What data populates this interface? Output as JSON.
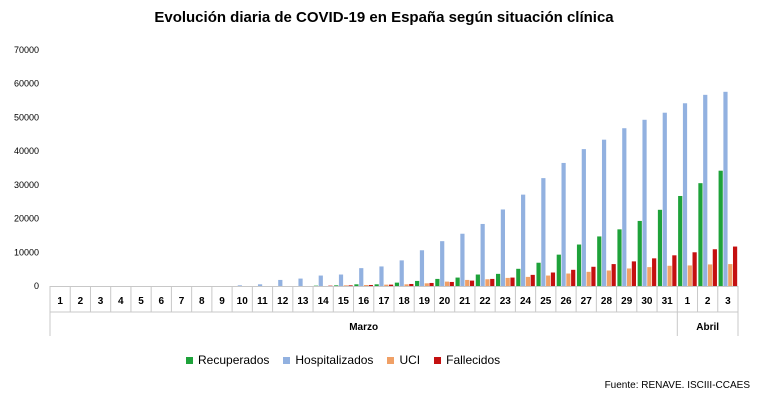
{
  "chart_data": {
    "type": "bar",
    "title": "Evolución diaria de COVID-19 en España según situación clínica",
    "source": "Fuente: RENAVE. ISCIII-CCAES",
    "categories": [
      "1",
      "2",
      "3",
      "4",
      "5",
      "6",
      "7",
      "8",
      "9",
      "10",
      "11",
      "12",
      "13",
      "14",
      "15",
      "16",
      "17",
      "18",
      "19",
      "20",
      "21",
      "22",
      "23",
      "24",
      "25",
      "26",
      "27",
      "28",
      "29",
      "30",
      "31",
      "1",
      "2",
      "3"
    ],
    "month_groups": [
      {
        "label": "Marzo",
        "count": 31
      },
      {
        "label": "Abril",
        "count": 3
      }
    ],
    "ylim": [
      0,
      70000
    ],
    "yticks": [
      0,
      10000,
      20000,
      30000,
      40000,
      50000,
      60000,
      70000
    ],
    "legend_position": "bottom",
    "grid": false,
    "series": [
      {
        "name": "Recuperados",
        "color": "#1ea23a",
        "values": [
          0,
          0,
          0,
          0,
          0,
          0,
          0,
          0,
          0,
          0,
          0,
          0,
          0,
          100,
          200,
          500,
          500,
          1000,
          1500,
          2100,
          2500,
          3400,
          3600,
          5100,
          6900,
          9300,
          12300,
          14700,
          16800,
          19300,
          22600,
          26700,
          30500,
          34200
        ]
      },
      {
        "name": "Hospitalizados",
        "color": "#92b1e0",
        "values": [
          0,
          0,
          0,
          0,
          0,
          0,
          0,
          0,
          0,
          200,
          500,
          1800,
          2200,
          3100,
          3400,
          5300,
          5800,
          7600,
          10600,
          13300,
          15500,
          18400,
          22700,
          27100,
          32000,
          36500,
          40600,
          43400,
          46800,
          49300,
          51400,
          54200,
          56700,
          57600
        ]
      },
      {
        "name": "UCI",
        "color": "#f0a066",
        "values": [
          0,
          0,
          0,
          0,
          0,
          0,
          0,
          0,
          0,
          0,
          0,
          0,
          0,
          0,
          200,
          300,
          400,
          500,
          800,
          1300,
          1800,
          2000,
          2400,
          2700,
          3100,
          3700,
          4200,
          4600,
          5200,
          5600,
          6000,
          6100,
          6400,
          6500
        ]
      },
      {
        "name": "Fallecidos",
        "color": "#c41010",
        "values": [
          0,
          0,
          0,
          0,
          0,
          0,
          0,
          0,
          0,
          0,
          0,
          0,
          0,
          100,
          200,
          300,
          400,
          600,
          900,
          1200,
          1600,
          2100,
          2500,
          3300,
          4000,
          4800,
          5700,
          6500,
          7300,
          8200,
          9100,
          10000,
          10900,
          11700
        ]
      }
    ]
  }
}
